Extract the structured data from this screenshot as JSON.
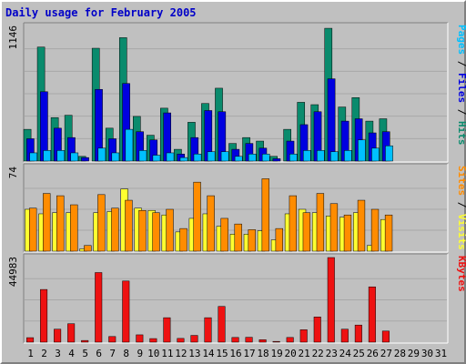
{
  "colors": {
    "hits": "#0a8b6d",
    "files": "#0000e0",
    "pages": "#00c0ff",
    "visits": "#ffff30",
    "sites": "#ff8c00",
    "kbytes": "#ee1111",
    "weekend": "#008060",
    "title": "#0000c8",
    "panel_bg": "#c0c0c0"
  },
  "chart_data": {
    "type": "bar",
    "title": "Daily usage for February 2005",
    "categories": [
      "1",
      "2",
      "3",
      "4",
      "5",
      "6",
      "7",
      "8",
      "9",
      "10",
      "11",
      "12",
      "13",
      "14",
      "15",
      "16",
      "17",
      "18",
      "19",
      "20",
      "21",
      "22",
      "23",
      "24",
      "25",
      "26",
      "27",
      "28",
      "29",
      "30",
      "31"
    ],
    "weekend_days": [
      "6",
      "12",
      "13",
      "19",
      "20",
      "26",
      "27"
    ],
    "panels": [
      {
        "id": "hits_files_pages",
        "max_label": "1146",
        "ylim": [
          0,
          1146
        ],
        "series": [
          {
            "name": "Hits",
            "color": "#0a8b6d",
            "values": [
              270,
              970,
              370,
              390,
              40,
              960,
              280,
              1050,
              380,
              220,
              450,
              100,
              330,
              490,
              620,
              150,
              200,
              170,
              40,
              270,
              500,
              480,
              1130,
              460,
              540,
              340,
              360,
              0,
              0,
              0,
              0
            ]
          },
          {
            "name": "Files",
            "color": "#0000e0",
            "values": [
              190,
              590,
              280,
              200,
              30,
              610,
              190,
              660,
              250,
              180,
              410,
              60,
              200,
              430,
              420,
              100,
              150,
              110,
              20,
              170,
              310,
              420,
              700,
              340,
              360,
              240,
              250,
              0,
              0,
              0,
              0
            ]
          },
          {
            "name": "Pages",
            "color": "#00c0ff",
            "values": [
              70,
              90,
              90,
              70,
              0,
              110,
              70,
              270,
              90,
              50,
              70,
              30,
              60,
              80,
              80,
              40,
              60,
              60,
              0,
              60,
              90,
              90,
              80,
              90,
              180,
              110,
              130,
              0,
              0,
              0,
              0
            ]
          }
        ],
        "labels": [
          {
            "text": "Pages",
            "color": "#00c0ff"
          },
          {
            "text": " / ",
            "color": "#000000"
          },
          {
            "text": "Files",
            "color": "#0000e0"
          },
          {
            "text": " / ",
            "color": "#000000"
          },
          {
            "text": "Hits",
            "color": "#0a8b6d"
          }
        ]
      },
      {
        "id": "visits_sites",
        "max_label": "74",
        "ylim": [
          0,
          74
        ],
        "series": [
          {
            "name": "Visits",
            "color": "#ffff30",
            "values": [
              37,
              33,
              34,
              34,
              2,
              34,
              35,
              55,
              38,
              36,
              32,
              17,
              29,
              33,
              22,
              15,
              15,
              18,
              10,
              33,
              37,
              34,
              31,
              30,
              34,
              5,
              28,
              0,
              0,
              0,
              0
            ]
          },
          {
            "name": "Sites",
            "color": "#ff8c00",
            "values": [
              38,
              51,
              49,
              41,
              5,
              50,
              38,
              45,
              36,
              34,
              37,
              20,
              61,
              49,
              29,
              24,
              19,
              64,
              20,
              49,
              34,
              51,
              42,
              32,
              45,
              37,
              32,
              0,
              0,
              0,
              0
            ]
          }
        ],
        "labels": [
          {
            "text": "Sites",
            "color": "#ff8c00"
          },
          {
            "text": " / ",
            "color": "#000000"
          },
          {
            "text": "Visits",
            "color": "#ffff30"
          }
        ]
      },
      {
        "id": "kbytes",
        "max_label": "44983",
        "ylim": [
          0,
          44983
        ],
        "series": [
          {
            "name": "KBytes",
            "color": "#ee1111",
            "values": [
              2400,
              28000,
              6900,
              9800,
              900,
              37000,
              3000,
              32500,
              3900,
              1900,
              13000,
              2000,
              3600,
              13000,
              19000,
              2500,
              2600,
              1300,
              400,
              2500,
              6600,
              13400,
              44983,
              6900,
              9100,
              29400,
              5900,
              0,
              0,
              0,
              0
            ]
          }
        ],
        "labels": [
          {
            "text": "KBytes",
            "color": "#ee1111"
          }
        ]
      }
    ]
  }
}
